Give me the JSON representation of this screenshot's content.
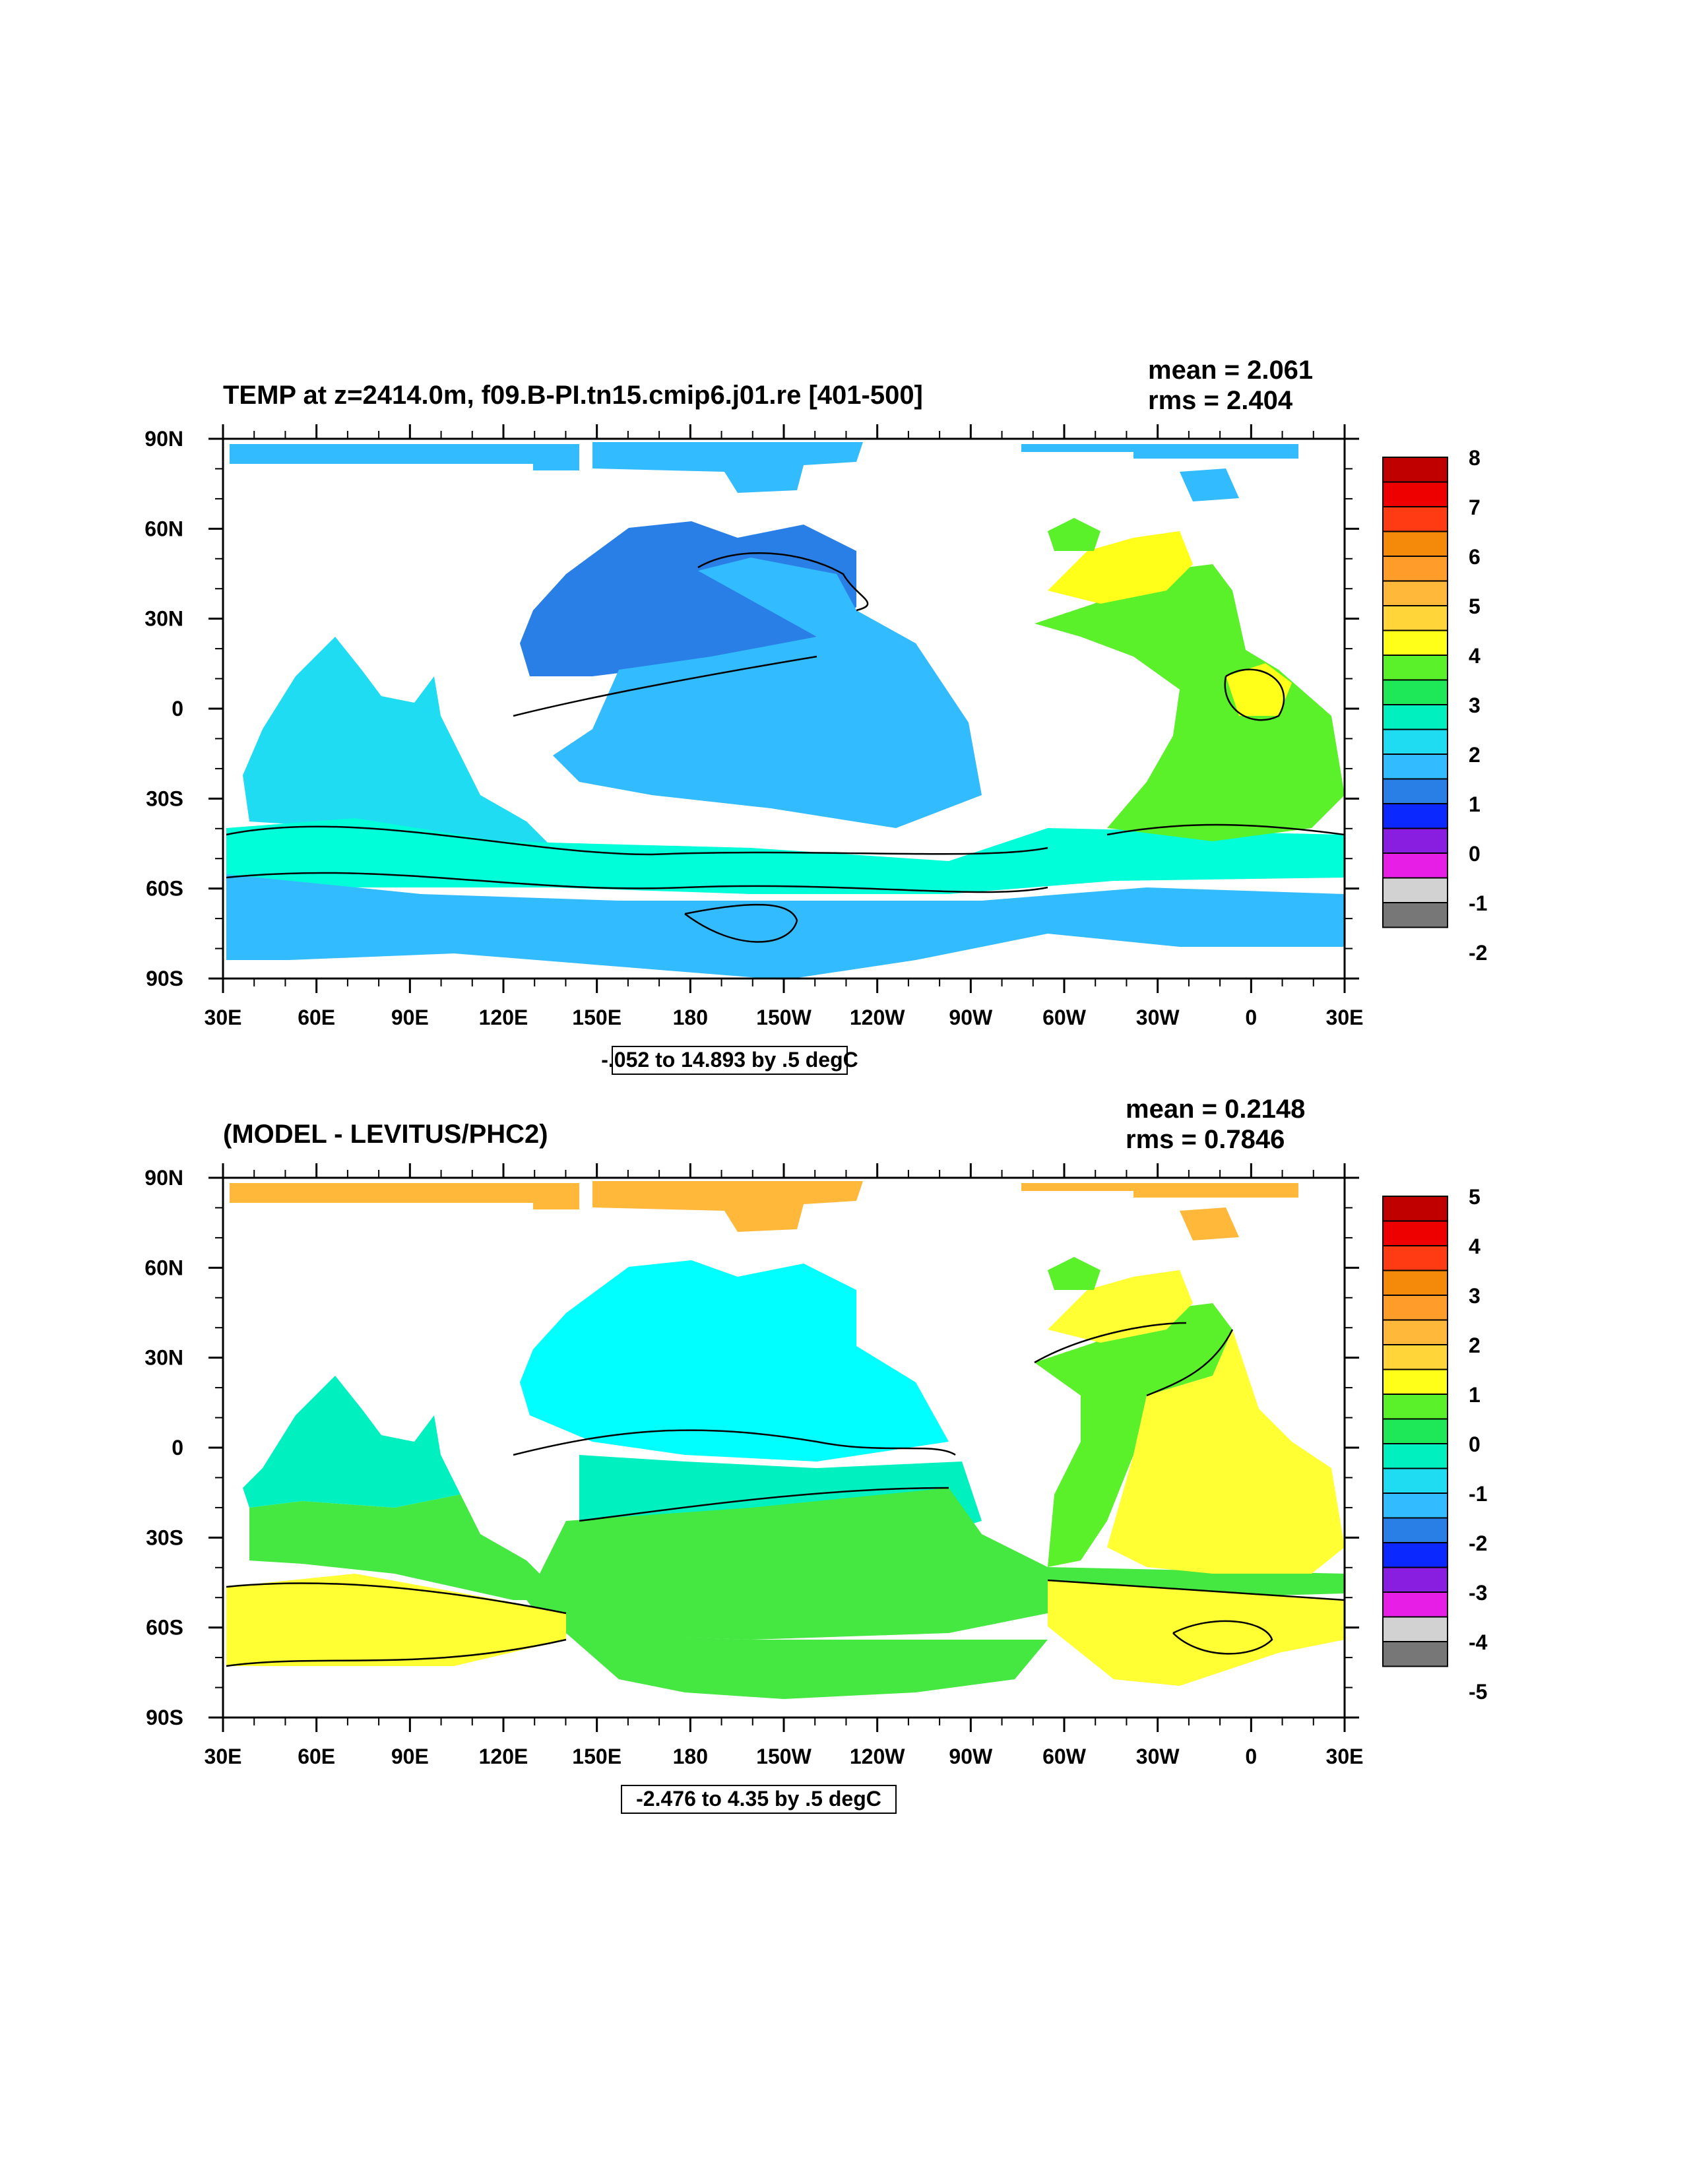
{
  "panels": [
    {
      "title": "TEMP at z=2414.0m, f09.B-PI.tn15.cmip6.j01.re [401-500]",
      "stats": [
        "mean = 2.061",
        "rms = 2.404"
      ],
      "range_label": "-.052 to 14.893 by .5 degC",
      "colorbar": {
        "labels": [
          "8",
          "7",
          "6",
          "5",
          "4",
          "3",
          "2",
          "1",
          "0",
          "-1",
          "-2"
        ]
      },
      "fill": {
        "north": "#33bbff",
        "pacific": "#2a7fe6",
        "indian": "#1fdcf2",
        "atlantic": "#5af02a",
        "south": "#33bbff",
        "southern_band": "#00ffd8"
      }
    },
    {
      "title": "(MODEL - LEVITUS/PHC2)",
      "stats": [
        "mean = 0.2148",
        "rms = 0.7846"
      ],
      "range_label": "-2.476 to 4.35 by .5 degC",
      "colorbar": {
        "labels": [
          "5",
          "4",
          "3",
          "2",
          "1",
          "0",
          "-1",
          "-2",
          "-3",
          "-4",
          "-5"
        ]
      },
      "fill": {
        "north": "#ffb83a",
        "pacific": "#00ffff",
        "indian": "#00f0c0",
        "atlantic": "#5af02a",
        "south": "#44e840",
        "southern_band": "#ffff33"
      }
    }
  ],
  "axes": {
    "x_ticks": [
      "30E",
      "60E",
      "90E",
      "120E",
      "150E",
      "180",
      "150W",
      "120W",
      "90W",
      "60W",
      "30W",
      "0",
      "30E"
    ],
    "y_ticks": [
      "90N",
      "60N",
      "30N",
      "0",
      "30S",
      "60S",
      "90S"
    ]
  },
  "colorbar_colors": [
    "#c00000",
    "#ee0000",
    "#ff3b14",
    "#f58a0a",
    "#ff9c2a",
    "#ffb83a",
    "#ffd53a",
    "#ffff1a",
    "#5af02a",
    "#1ee858",
    "#00f0c0",
    "#1fdcf2",
    "#33bbff",
    "#2a7fe6",
    "#0a28ff",
    "#8a1ee0",
    "#e61ee6",
    "#d2d2d2",
    "#777777"
  ],
  "chart_data": [
    {
      "type": "heatmap",
      "title": "TEMP at z=2414.0m, f09.B-PI.tn15.cmip6.j01.re [401-500]",
      "subtitle": "-.052 to 14.893 by .5 degC",
      "xlabel": "",
      "ylabel": "",
      "x_categories": [
        "30E",
        "60E",
        "90E",
        "120E",
        "150E",
        "180",
        "150W",
        "120W",
        "90W",
        "60W",
        "30W",
        "0",
        "30E"
      ],
      "y_categories": [
        "90N",
        "60N",
        "30N",
        "0",
        "30S",
        "60S",
        "90S"
      ],
      "xlim": [
        30,
        390
      ],
      "ylim": [
        -90,
        90
      ],
      "stats": {
        "mean": 2.061,
        "rms": 2.404
      },
      "contour_interval": 0.5,
      "value_range": [
        -0.052,
        14.893
      ],
      "colorbar_levels": [
        8,
        7,
        6,
        5,
        4,
        3,
        2,
        1,
        0,
        -1,
        -2
      ]
    },
    {
      "type": "heatmap",
      "title": "(MODEL - LEVITUS/PHC2)",
      "subtitle": "-2.476 to 4.35 by .5 degC",
      "xlabel": "",
      "ylabel": "",
      "x_categories": [
        "30E",
        "60E",
        "90E",
        "120E",
        "150E",
        "180",
        "150W",
        "120W",
        "90W",
        "60W",
        "30W",
        "0",
        "30E"
      ],
      "y_categories": [
        "90N",
        "60N",
        "30N",
        "0",
        "30S",
        "60S",
        "90S"
      ],
      "xlim": [
        30,
        390
      ],
      "ylim": [
        -90,
        90
      ],
      "stats": {
        "mean": 0.2148,
        "rms": 0.7846
      },
      "contour_interval": 0.5,
      "value_range": [
        -2.476,
        4.35
      ],
      "colorbar_levels": [
        5,
        4,
        3,
        2,
        1,
        0,
        -1,
        -2,
        -3,
        -4,
        -5
      ]
    }
  ]
}
